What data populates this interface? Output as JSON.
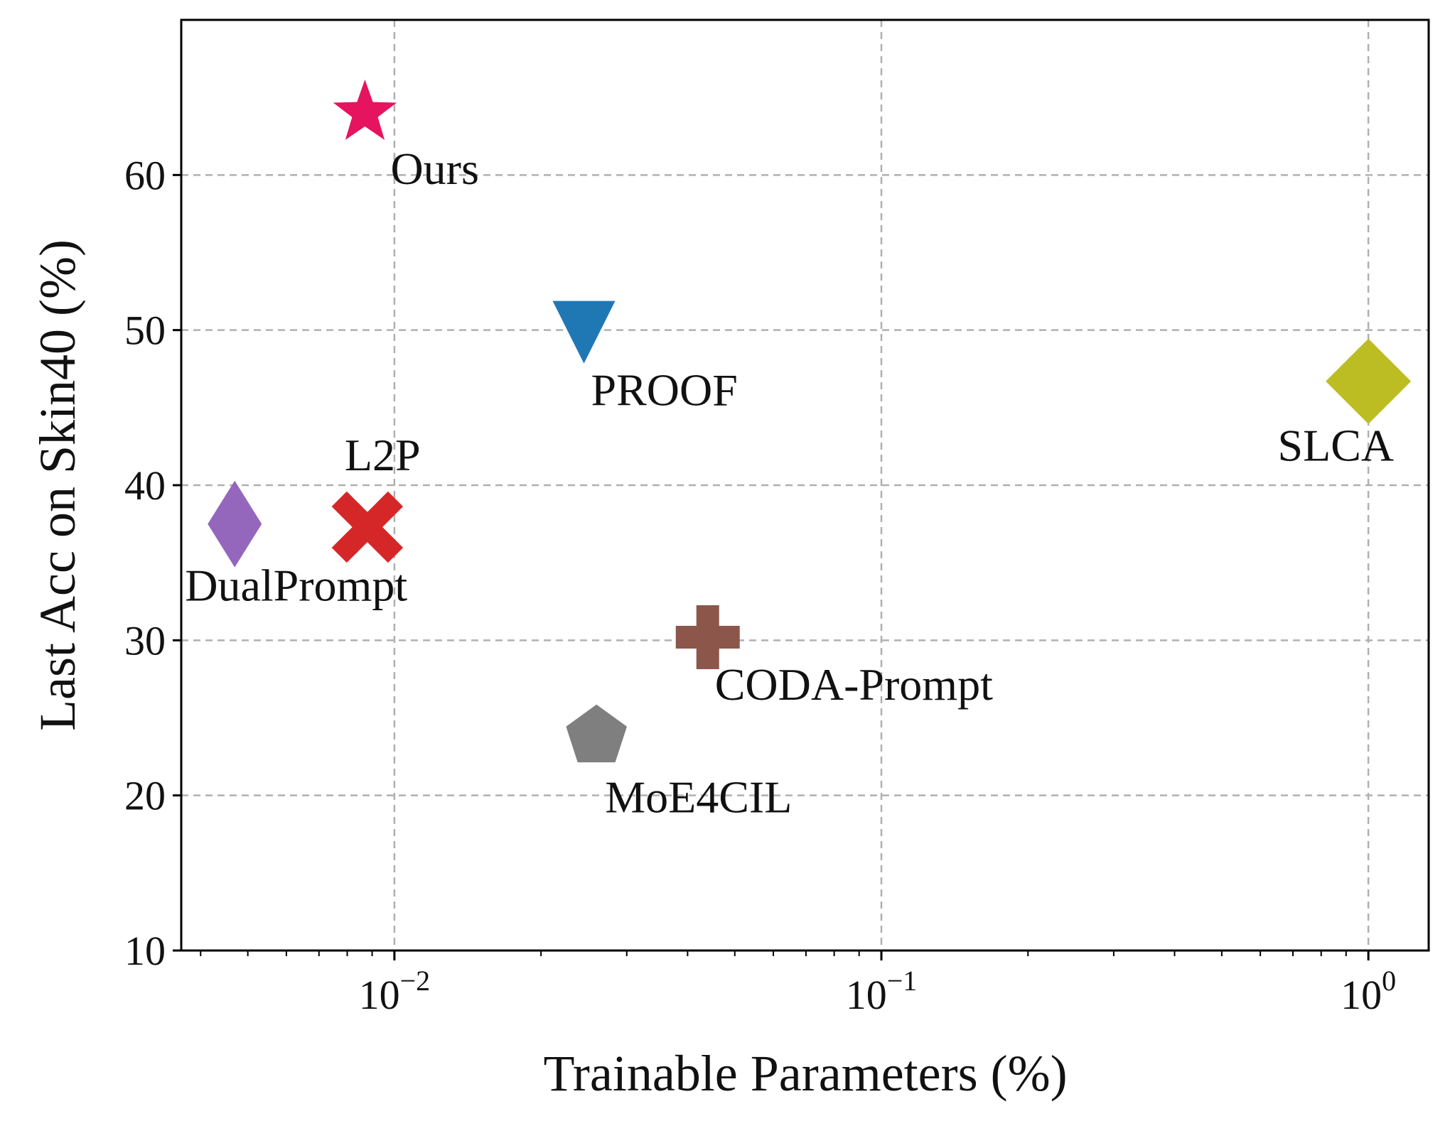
{
  "chart_data": {
    "type": "scatter",
    "xlabel": "Trainable Parameters (%)",
    "ylabel": "Last Acc on Skin40 (%)",
    "x_scale": "log",
    "xlim": [
      0.00365,
      1.33
    ],
    "ylim": [
      10,
      70
    ],
    "grid": true,
    "x_ticks": [
      {
        "value": 0.01,
        "label": "10",
        "exp": "−2"
      },
      {
        "value": 0.1,
        "label": "10",
        "exp": "−1"
      },
      {
        "value": 1,
        "label": "10",
        "exp": "0"
      }
    ],
    "y_ticks": [
      10,
      20,
      30,
      40,
      50,
      60
    ],
    "points": [
      {
        "label": "Ours",
        "x": 0.0087,
        "y": 64.0,
        "marker": "star",
        "color": "#e6135e"
      },
      {
        "label": "PROOF",
        "x": 0.0245,
        "y": 50.0,
        "marker": "triangle-down",
        "color": "#1f77b4"
      },
      {
        "label": "SLCA",
        "x": 1.0,
        "y": 46.7,
        "marker": "diamond",
        "color": "#bcbd22"
      },
      {
        "label": "L2P",
        "x": 0.0088,
        "y": 37.3,
        "marker": "x",
        "color": "#d62728"
      },
      {
        "label": "DualPrompt",
        "x": 0.0047,
        "y": 37.5,
        "marker": "thin-diamond",
        "color": "#9467bd"
      },
      {
        "label": "CODA-Prompt",
        "x": 0.044,
        "y": 30.2,
        "marker": "plus",
        "color": "#8c564b"
      },
      {
        "label": "MoE4CIL",
        "x": 0.026,
        "y": 23.8,
        "marker": "pentagon",
        "color": "#7f7f7f"
      }
    ]
  }
}
